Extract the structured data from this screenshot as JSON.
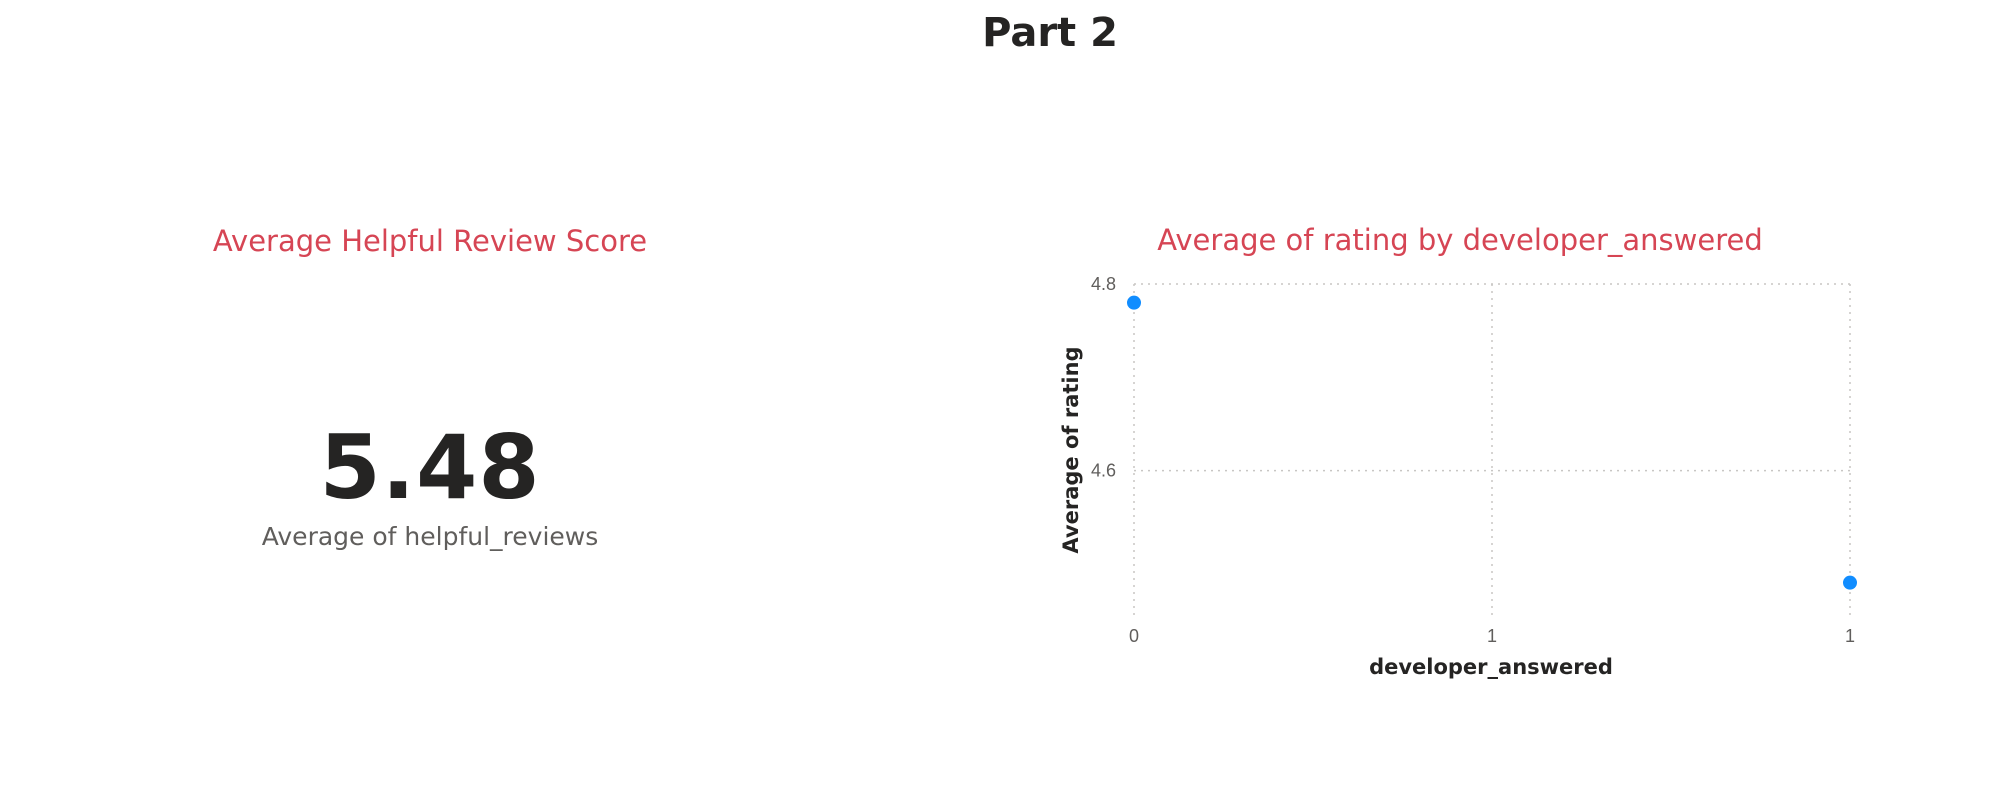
{
  "page": {
    "title": "Part 2"
  },
  "card": {
    "title": "Average Helpful Review Score",
    "value": "5.48",
    "label": "Average of helpful_reviews"
  },
  "chart_data": {
    "type": "scatter",
    "title": "Average of rating by developer_answered",
    "xlabel": "developer_answered",
    "ylabel": "Average of rating",
    "x_tick_labels": [
      "0",
      "1",
      "1"
    ],
    "y_tick_labels": [
      "4.8",
      "4.6"
    ],
    "xlim": [
      0,
      1
    ],
    "ylim": [
      4.44,
      4.8
    ],
    "grid": true,
    "point_color": "#118dff",
    "series": [
      {
        "points": [
          {
            "x": 0,
            "y": 4.78
          },
          {
            "x": 1,
            "y": 4.48
          }
        ]
      }
    ]
  },
  "colors": {
    "title_accent": "#d64554",
    "text_dark": "#252423",
    "text_muted": "#605e5c",
    "gridline": "#c8c6c4"
  }
}
